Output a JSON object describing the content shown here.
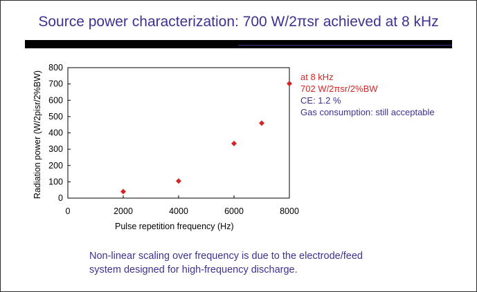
{
  "slide": {
    "title": "Source power characterization: 700 W/2πsr achieved at 8 kHz",
    "annotations": [
      {
        "text": "at 8 kHz",
        "color": "#d42525"
      },
      {
        "text": "702 W/2πsr/2%BW",
        "color": "#d42525"
      },
      {
        "text": "CE: 1.2 %",
        "color": "#3d3191"
      },
      {
        "text": "Gas consumption: still acceptable",
        "color": "#3d3191"
      }
    ],
    "caption_line1": "Non-linear scaling over frequency is due to the electrode/feed",
    "caption_line2": "system designed for high-frequency discharge."
  },
  "chart_data": {
    "type": "scatter",
    "title": "",
    "xlabel": "Pulse repetition frequency (Hz)",
    "ylabel": "Radiation power (W/2pisr/2%BW)",
    "xlim": [
      0,
      8000
    ],
    "ylim": [
      0,
      800
    ],
    "xticks": [
      0,
      2000,
      4000,
      6000,
      8000
    ],
    "yticks": [
      0,
      100,
      200,
      300,
      400,
      500,
      600,
      700,
      800
    ],
    "grid": false,
    "marker_color": "#d42525",
    "series": [
      {
        "name": "Radiation power",
        "x": [
          2000,
          4000,
          6000,
          7000,
          8000
        ],
        "y": [
          40,
          105,
          335,
          460,
          702
        ]
      }
    ]
  }
}
